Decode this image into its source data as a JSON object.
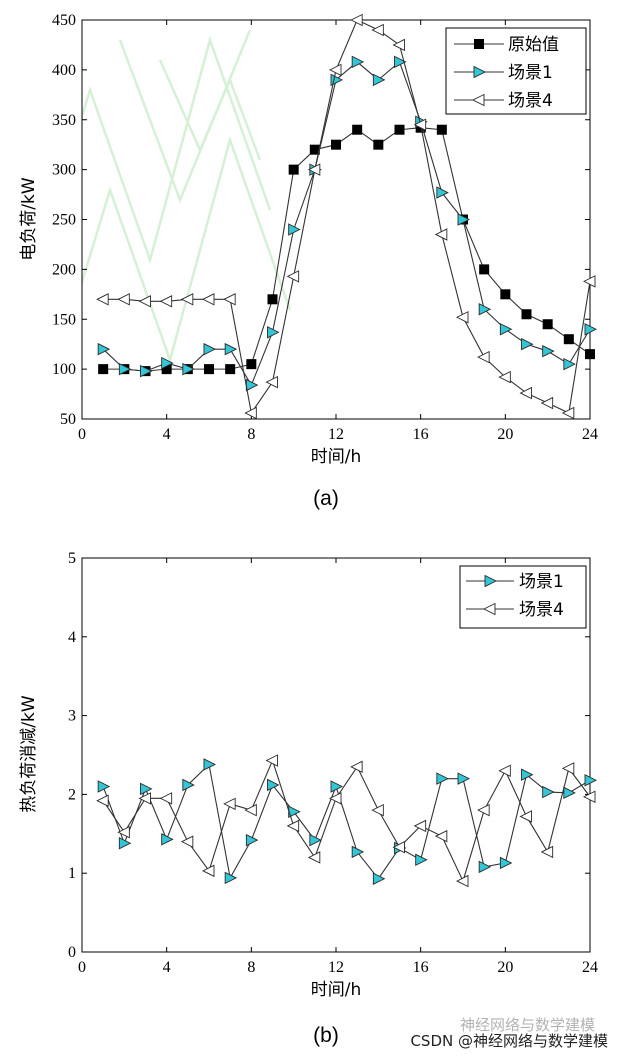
{
  "chart_data": [
    {
      "type": "line",
      "panel_label": "(a)",
      "xlabel": "时间/h",
      "ylabel": "电负荷/kW",
      "xlim": [
        0,
        24
      ],
      "ylim": [
        50,
        450
      ],
      "xticks": [
        0,
        4,
        8,
        12,
        16,
        20,
        24
      ],
      "yticks": [
        50,
        100,
        150,
        200,
        250,
        300,
        350,
        400,
        450
      ],
      "x": [
        1,
        2,
        3,
        4,
        5,
        6,
        7,
        8,
        9,
        10,
        11,
        12,
        13,
        14,
        15,
        16,
        17,
        18,
        19,
        20,
        21,
        22,
        23,
        24
      ],
      "legend_position": "top-right",
      "series": [
        {
          "name": "原始值",
          "marker": "square",
          "marker_color": "#000000",
          "values": [
            100,
            100,
            98,
            100,
            100,
            100,
            100,
            105,
            170,
            300,
            320,
            325,
            340,
            325,
            340,
            342,
            340,
            250,
            200,
            175,
            155,
            145,
            130,
            115
          ]
        },
        {
          "name": "场景1",
          "marker": "triangle-right",
          "marker_color": "#33c6d6",
          "values": [
            120,
            100,
            98,
            106,
            100,
            120,
            120,
            84,
            137,
            240,
            300,
            390,
            408,
            390,
            408,
            348,
            277,
            250,
            160,
            140,
            125,
            118,
            105,
            140
          ]
        },
        {
          "name": "场景4",
          "marker": "triangle-left",
          "marker_color": "#ffffff",
          "values": [
            170,
            170,
            168,
            168,
            170,
            170,
            170,
            56,
            87,
            193,
            300,
            400,
            450,
            440,
            425,
            345,
            235,
            152,
            112,
            92,
            76,
            66,
            56,
            188
          ]
        }
      ]
    },
    {
      "type": "line",
      "panel_label": "(b)",
      "xlabel": "时间/h",
      "ylabel": "热负荷消减/kW",
      "xlim": [
        0,
        24
      ],
      "ylim": [
        0,
        5
      ],
      "xticks": [
        0,
        4,
        8,
        12,
        16,
        20,
        24
      ],
      "yticks": [
        0,
        1,
        2,
        3,
        4,
        5
      ],
      "x": [
        1,
        2,
        3,
        4,
        5,
        6,
        7,
        8,
        9,
        10,
        11,
        12,
        13,
        14,
        15,
        16,
        17,
        18,
        19,
        20,
        21,
        22,
        23,
        24
      ],
      "legend_position": "top-right",
      "series": [
        {
          "name": "场景1",
          "marker": "triangle-right",
          "marker_color": "#33c6d6",
          "values": [
            2.1,
            1.38,
            2.07,
            1.43,
            2.12,
            2.38,
            0.94,
            1.42,
            2.12,
            1.78,
            1.42,
            2.1,
            1.27,
            0.93,
            1.32,
            1.17,
            2.2,
            2.2,
            1.08,
            1.13,
            2.25,
            2.03,
            2.02,
            2.18
          ]
        },
        {
          "name": "场景4",
          "marker": "triangle-left",
          "marker_color": "#ffffff",
          "values": [
            1.92,
            1.52,
            1.95,
            1.95,
            1.4,
            1.03,
            1.88,
            1.8,
            2.43,
            1.6,
            1.2,
            1.95,
            2.35,
            1.8,
            1.33,
            1.6,
            1.47,
            0.9,
            1.8,
            2.3,
            1.72,
            1.27,
            2.33,
            1.97
          ]
        }
      ]
    }
  ],
  "watermark": "CSDN @神经网络与数学建模",
  "overlay_watermark": "神经网络与数学建模",
  "line_color": "#333333"
}
